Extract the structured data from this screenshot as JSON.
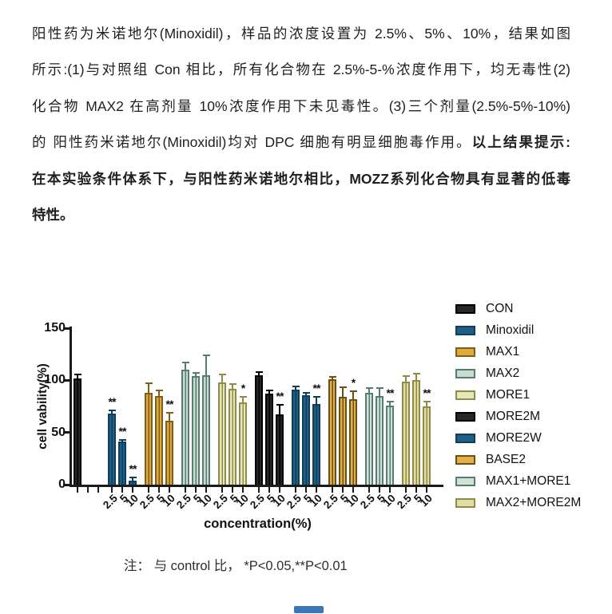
{
  "page": {
    "background": "#ffffff"
  },
  "paragraph": {
    "lines": [
      {
        "segments": [
          {
            "t": "阳性药为米诺地尔(Minoxidil)，样品的浓度设置为 2.5%、5%、10%，结果如图",
            "b": false
          }
        ]
      },
      {
        "segments": [
          {
            "t": "所示:(1)与对照组 Con 相比，所有化合物在 2.5%-5-%浓度作用下，均无毒性(2)",
            "b": false
          }
        ]
      },
      {
        "segments": [
          {
            "t": "化合物 MAX2 在高剂量 10%浓度作用下未见毒性。(3)三个剂量(2.5%-5%-10%)",
            "b": false
          }
        ]
      },
      {
        "segments": [
          {
            "t": "的 阳性药米诺地尔(Minoxidil)均对 DPC 细胞有明显细胞毒作用。",
            "b": false
          },
          {
            "t": "以上结果提示:",
            "b": true
          }
        ]
      },
      {
        "segments": [
          {
            "t": "在本实验条件体系下，与阳性药米诺地尔相比，MOZZ系列化合物具有显著的低毒",
            "b": true
          }
        ]
      },
      {
        "segments": [
          {
            "t": "特性。",
            "b": true
          }
        ]
      }
    ]
  },
  "chart_data": {
    "type": "bar",
    "title": "",
    "ylabel": "cell vability(%)",
    "xlabel": "concentration(%)",
    "ylim": [
      0,
      150
    ],
    "yticks": [
      0,
      50,
      100,
      150
    ],
    "group_tick_labels": [
      "2.5",
      "5",
      "10"
    ],
    "legend_position": "right",
    "grid": false,
    "error_bars": true,
    "series": [
      {
        "name": "CON",
        "fill": "#262626",
        "edge": "#000000",
        "values": [
          102
        ],
        "errors": [
          4
        ],
        "sig": [
          ""
        ]
      },
      {
        "name": "Minoxidil",
        "fill": "#215e84",
        "edge": "#0f3e5c",
        "values": [
          68,
          41,
          4
        ],
        "errors": [
          4,
          3,
          4
        ],
        "sig": [
          "**",
          "**",
          "**"
        ]
      },
      {
        "name": "MAX1",
        "fill": "#dfa93c",
        "edge": "#7d5f1c",
        "values": [
          88,
          85,
          61
        ],
        "errors": [
          10,
          6,
          9
        ],
        "sig": [
          "",
          "",
          "**"
        ]
      },
      {
        "name": "MAX2",
        "fill": "#c9dbcd",
        "edge": "#567d72",
        "values": [
          110,
          104,
          105
        ],
        "errors": [
          8,
          4,
          20
        ],
        "sig": [
          "",
          "",
          ""
        ]
      },
      {
        "name": "MORE1",
        "fill": "#e9e6b9",
        "edge": "#8f8c48",
        "values": [
          98,
          92,
          79
        ],
        "errors": [
          8,
          5,
          6
        ],
        "sig": [
          "",
          "",
          "*"
        ]
      },
      {
        "name": "MORE2M",
        "fill": "#262626",
        "edge": "#000000",
        "values": [
          105,
          87,
          67
        ],
        "errors": [
          4,
          4,
          10
        ],
        "sig": [
          "",
          "",
          "**"
        ]
      },
      {
        "name": "MORE2W",
        "fill": "#215e84",
        "edge": "#0f3e5c",
        "values": [
          91,
          86,
          77
        ],
        "errors": [
          4,
          3,
          8
        ],
        "sig": [
          "",
          "",
          "**"
        ]
      },
      {
        "name": "BASE2",
        "fill": "#e2b04a",
        "edge": "#6b4f14",
        "values": [
          101,
          84,
          82
        ],
        "errors": [
          3,
          10,
          8
        ],
        "sig": [
          "",
          "",
          "*"
        ]
      },
      {
        "name": "MAX1+MORE1",
        "fill": "#d2e2d6",
        "edge": "#567d72",
        "values": [
          88,
          85,
          76
        ],
        "errors": [
          5,
          8,
          4
        ],
        "sig": [
          "",
          "",
          "**"
        ]
      },
      {
        "name": "MAX2+MORE2M",
        "fill": "#e1dda4",
        "edge": "#8f8c48",
        "values": [
          99,
          100,
          75
        ],
        "errors": [
          6,
          7,
          5
        ],
        "sig": [
          "",
          "",
          "**"
        ]
      }
    ]
  },
  "note": {
    "text": "注： 与 control 比， *P<0.05,**P<0.01"
  }
}
